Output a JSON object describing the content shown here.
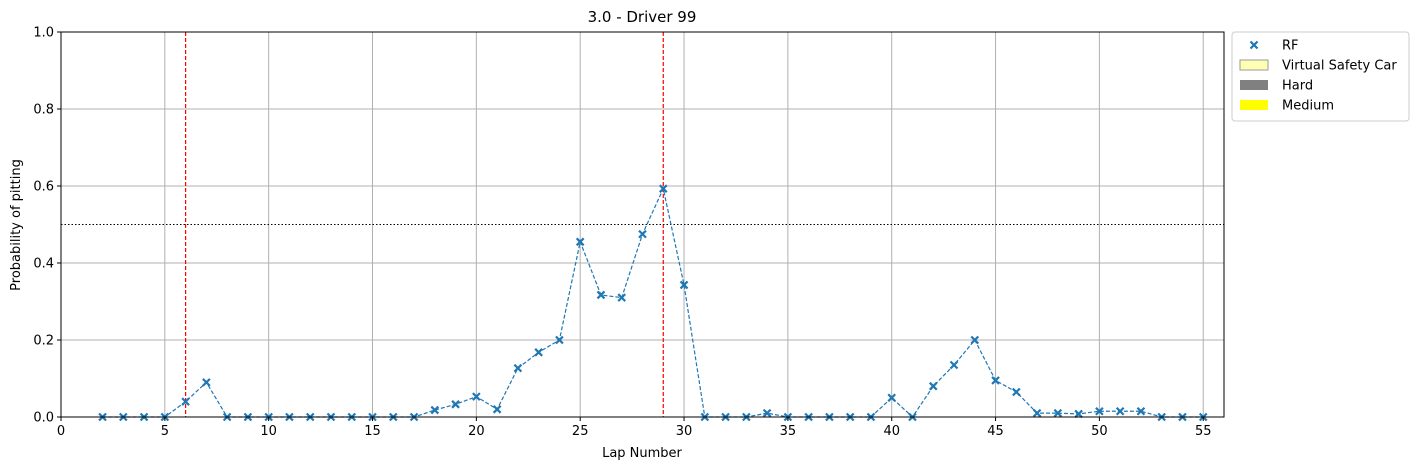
{
  "chart_data": {
    "type": "line",
    "title": "3.0 - Driver 99",
    "xlabel": "Lap Number",
    "ylabel": "Probability of pitting",
    "xlim": [
      0,
      56
    ],
    "ylim": [
      0,
      1
    ],
    "xticks": [
      0,
      5,
      10,
      15,
      20,
      25,
      30,
      35,
      40,
      45,
      50,
      55
    ],
    "yticks": [
      0.0,
      0.2,
      0.4,
      0.6,
      0.8,
      1.0
    ],
    "ytick_labels": [
      "0.0",
      "0.2",
      "0.4",
      "0.6",
      "0.8",
      "1.0"
    ],
    "grid": true,
    "threshold": 0.5,
    "pit_laps": [
      6,
      29
    ],
    "legend_placement": "outside upper right",
    "legend": [
      {
        "label": "RF",
        "kind": "marker",
        "color": "#1f77b4"
      },
      {
        "label": "Virtual Safety Car",
        "kind": "patch",
        "color": "#ffffb3",
        "edge": "#999999"
      },
      {
        "label": "Hard",
        "kind": "patch",
        "color": "#808080"
      },
      {
        "label": "Medium",
        "kind": "patch",
        "color": "#ffff00"
      }
    ],
    "series": [
      {
        "name": "RF",
        "color": "#1f77b4",
        "marker": "x",
        "linestyle": "dashed",
        "x": [
          2,
          3,
          4,
          5,
          6,
          7,
          8,
          9,
          10,
          11,
          12,
          13,
          14,
          15,
          16,
          17,
          18,
          19,
          20,
          21,
          22,
          23,
          24,
          25,
          26,
          27,
          28,
          29,
          30,
          31,
          32,
          33,
          34,
          35,
          36,
          37,
          38,
          39,
          40,
          41,
          42,
          43,
          44,
          45,
          46,
          47,
          48,
          49,
          50,
          51,
          52,
          53,
          54,
          55
        ],
        "y": [
          0.0,
          0.0,
          0.0,
          0.0,
          0.04,
          0.09,
          0.0,
          0.0,
          0.0,
          0.0,
          0.0,
          0.0,
          0.0,
          0.0,
          0.0,
          0.0,
          0.018,
          0.033,
          0.053,
          0.02,
          0.127,
          0.168,
          0.2,
          0.455,
          0.317,
          0.31,
          0.475,
          0.593,
          0.343,
          0.0,
          0.0,
          0.0,
          0.01,
          0.0,
          0.0,
          0.0,
          0.0,
          0.0,
          0.05,
          0.0,
          0.08,
          0.135,
          0.2,
          0.095,
          0.065,
          0.01,
          0.01,
          0.008,
          0.015,
          0.015,
          0.015,
          0.0,
          0.0,
          0.0
        ]
      }
    ]
  }
}
